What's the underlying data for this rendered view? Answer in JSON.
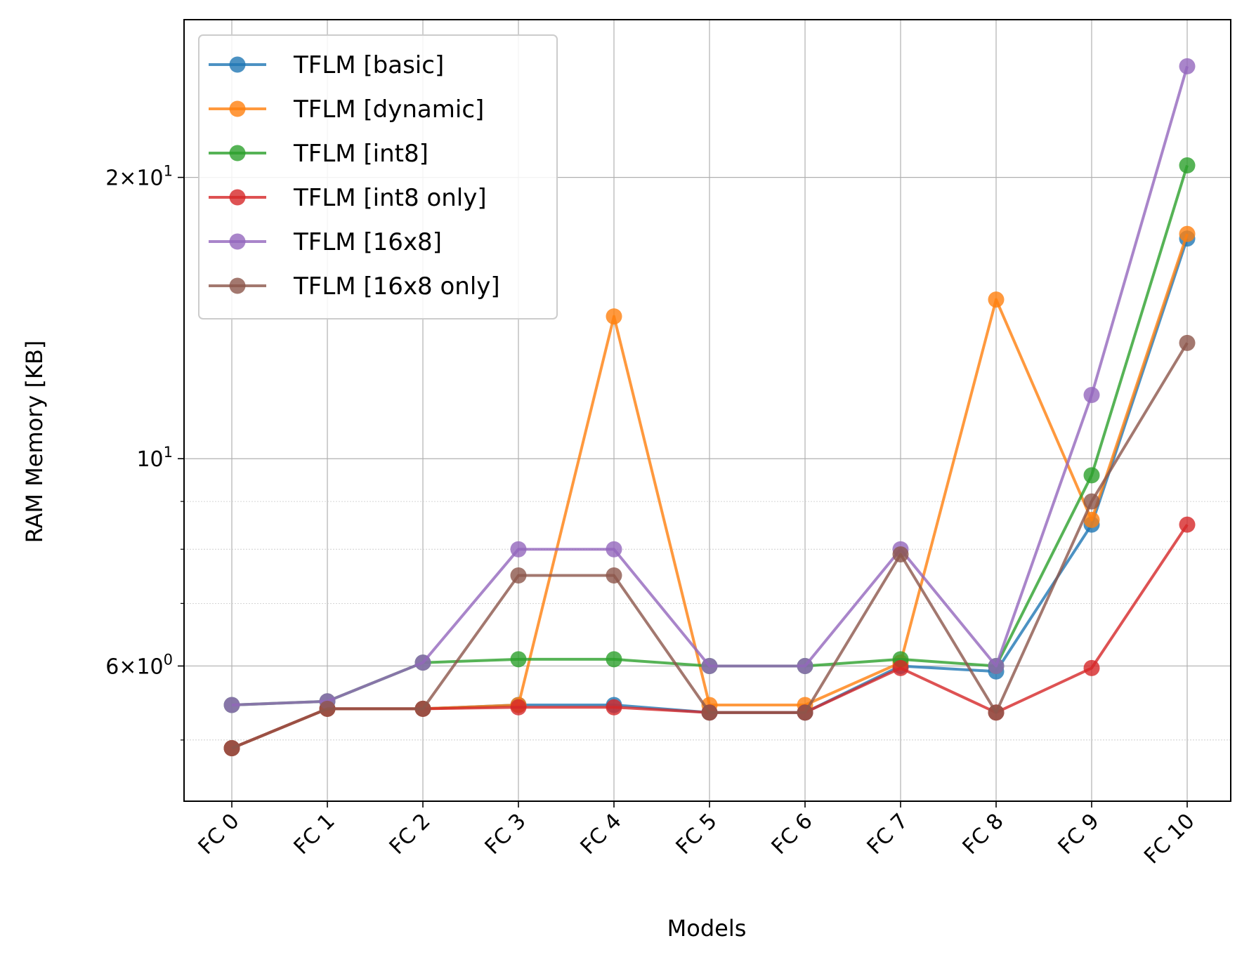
{
  "chart_data": {
    "type": "line",
    "title": "",
    "xlabel": "Models",
    "ylabel": "RAM Memory [KB]",
    "y_scale": "log",
    "ylim": [
      4.3,
      29.5
    ],
    "y_ticks": [
      {
        "value": 6,
        "base": "6",
        "exp": "0"
      },
      {
        "value": 10,
        "base": "",
        "exp": "1"
      },
      {
        "value": 20,
        "base": "2",
        "exp": "1"
      }
    ],
    "y_minor_ticks": [
      5,
      7,
      8,
      9
    ],
    "grid": true,
    "legend_position": "top-left",
    "categories": [
      "FC 0",
      "FC 1",
      "FC 2",
      "FC 3",
      "FC 4",
      "FC 5",
      "FC 6",
      "FC 7",
      "FC 8",
      "FC 9",
      "FC 10"
    ],
    "series": [
      {
        "name": "TFLM [basic]",
        "color": "#1f77b4",
        "values": [
          4.9,
          5.4,
          5.4,
          5.45,
          5.45,
          5.35,
          5.35,
          6.0,
          5.92,
          8.5,
          17.2
        ]
      },
      {
        "name": "TFLM [dynamic]",
        "color": "#ff7f0e",
        "values": [
          4.9,
          5.4,
          5.4,
          5.45,
          14.2,
          5.45,
          5.45,
          6.05,
          14.8,
          8.6,
          17.4
        ]
      },
      {
        "name": "TFLM [int8]",
        "color": "#2ca02c",
        "values": [
          5.45,
          5.5,
          6.05,
          6.1,
          6.1,
          6.0,
          6.0,
          6.1,
          6.0,
          9.6,
          20.6
        ]
      },
      {
        "name": "TFLM [int8 only]",
        "color": "#d62728",
        "values": [
          4.9,
          5.4,
          5.4,
          5.42,
          5.42,
          5.35,
          5.35,
          5.97,
          5.35,
          5.97,
          8.5
        ]
      },
      {
        "name": "TFLM [16x8]",
        "color": "#9467bd",
        "values": [
          5.45,
          5.5,
          6.05,
          8.0,
          8.0,
          6.0,
          6.0,
          8.0,
          6.0,
          11.7,
          26.3
        ]
      },
      {
        "name": "TFLM [16x8 only]",
        "color": "#8c564b",
        "values": [
          4.9,
          5.4,
          5.4,
          7.5,
          7.5,
          5.35,
          5.35,
          7.9,
          5.35,
          9.0,
          13.3
        ]
      }
    ]
  }
}
